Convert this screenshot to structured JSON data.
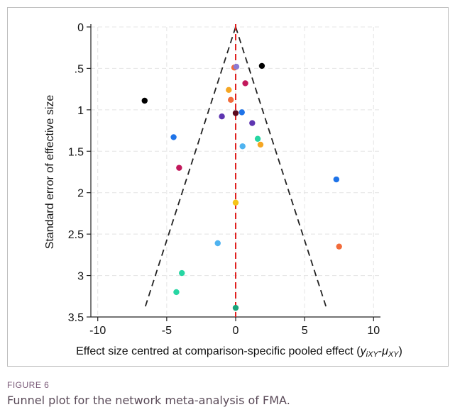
{
  "chart_data": {
    "type": "scatter",
    "title": "",
    "xlabel_parts": [
      "Effect size centred at comparison-specific pooled effect (",
      "y",
      "iXY",
      "-",
      "μ",
      "XY",
      ")"
    ],
    "ylabel": "Standard error of effective size",
    "xlim": [
      -10.5,
      10.5
    ],
    "ylim": [
      3.5,
      0
    ],
    "y_reversed": true,
    "x_ticks": [
      -10,
      -5,
      0,
      5,
      10
    ],
    "x_tick_labels": [
      "-10",
      "-5",
      "0",
      "5",
      "10"
    ],
    "y_ticks": [
      0,
      0.5,
      1,
      1.5,
      2,
      2.5,
      3,
      3.5
    ],
    "y_tick_labels": [
      "0",
      ".5",
      "1",
      "1.5",
      "2",
      "2.5",
      "3",
      "3.5"
    ],
    "grid": true,
    "reference_line": {
      "x": 0,
      "color": "#e0201e",
      "style": "dashed"
    },
    "funnel": {
      "apex": [
        0,
        0
      ],
      "base_y": 3.4,
      "base_x": [
        -6.6,
        6.6
      ],
      "style": "dashed",
      "color": "#222222"
    },
    "points": [
      {
        "x": -6.6,
        "y": 0.89,
        "color": "#000000"
      },
      {
        "x": 1.9,
        "y": 0.47,
        "color": "#000000"
      },
      {
        "x": -0.1,
        "y": 0.49,
        "color": "#f26b3a"
      },
      {
        "x": 0.05,
        "y": 0.48,
        "color": "#8c7bd4"
      },
      {
        "x": 0.7,
        "y": 0.68,
        "color": "#c2185b"
      },
      {
        "x": -0.5,
        "y": 0.76,
        "color": "#f5a623"
      },
      {
        "x": -0.35,
        "y": 0.88,
        "color": "#f26b3a"
      },
      {
        "x": 0.45,
        "y": 1.03,
        "color": "#1e73e8"
      },
      {
        "x": 0.0,
        "y": 1.04,
        "color": "#5c0a1e"
      },
      {
        "x": -1.0,
        "y": 1.08,
        "color": "#5e35b1"
      },
      {
        "x": 1.2,
        "y": 1.16,
        "color": "#5e35b1"
      },
      {
        "x": -4.5,
        "y": 1.33,
        "color": "#1e73e8"
      },
      {
        "x": 1.6,
        "y": 1.35,
        "color": "#27d6a3"
      },
      {
        "x": 1.8,
        "y": 1.42,
        "color": "#f5a623"
      },
      {
        "x": 0.5,
        "y": 1.44,
        "color": "#4fb3f0"
      },
      {
        "x": -4.1,
        "y": 1.7,
        "color": "#c2185b"
      },
      {
        "x": 7.3,
        "y": 1.84,
        "color": "#1e73e8"
      },
      {
        "x": 0.0,
        "y": 2.12,
        "color": "#f5c518"
      },
      {
        "x": -1.3,
        "y": 2.61,
        "color": "#4fb3f0"
      },
      {
        "x": 7.5,
        "y": 2.65,
        "color": "#f26b3a"
      },
      {
        "x": -3.9,
        "y": 2.97,
        "color": "#27d6a3"
      },
      {
        "x": -4.3,
        "y": 3.2,
        "color": "#27d6a3"
      },
      {
        "x": 0.0,
        "y": 3.39,
        "color": "#1aa37a"
      }
    ]
  },
  "caption": {
    "label": "FIGURE 6",
    "text": "Funnel plot for the network meta-analysis of FMA."
  }
}
